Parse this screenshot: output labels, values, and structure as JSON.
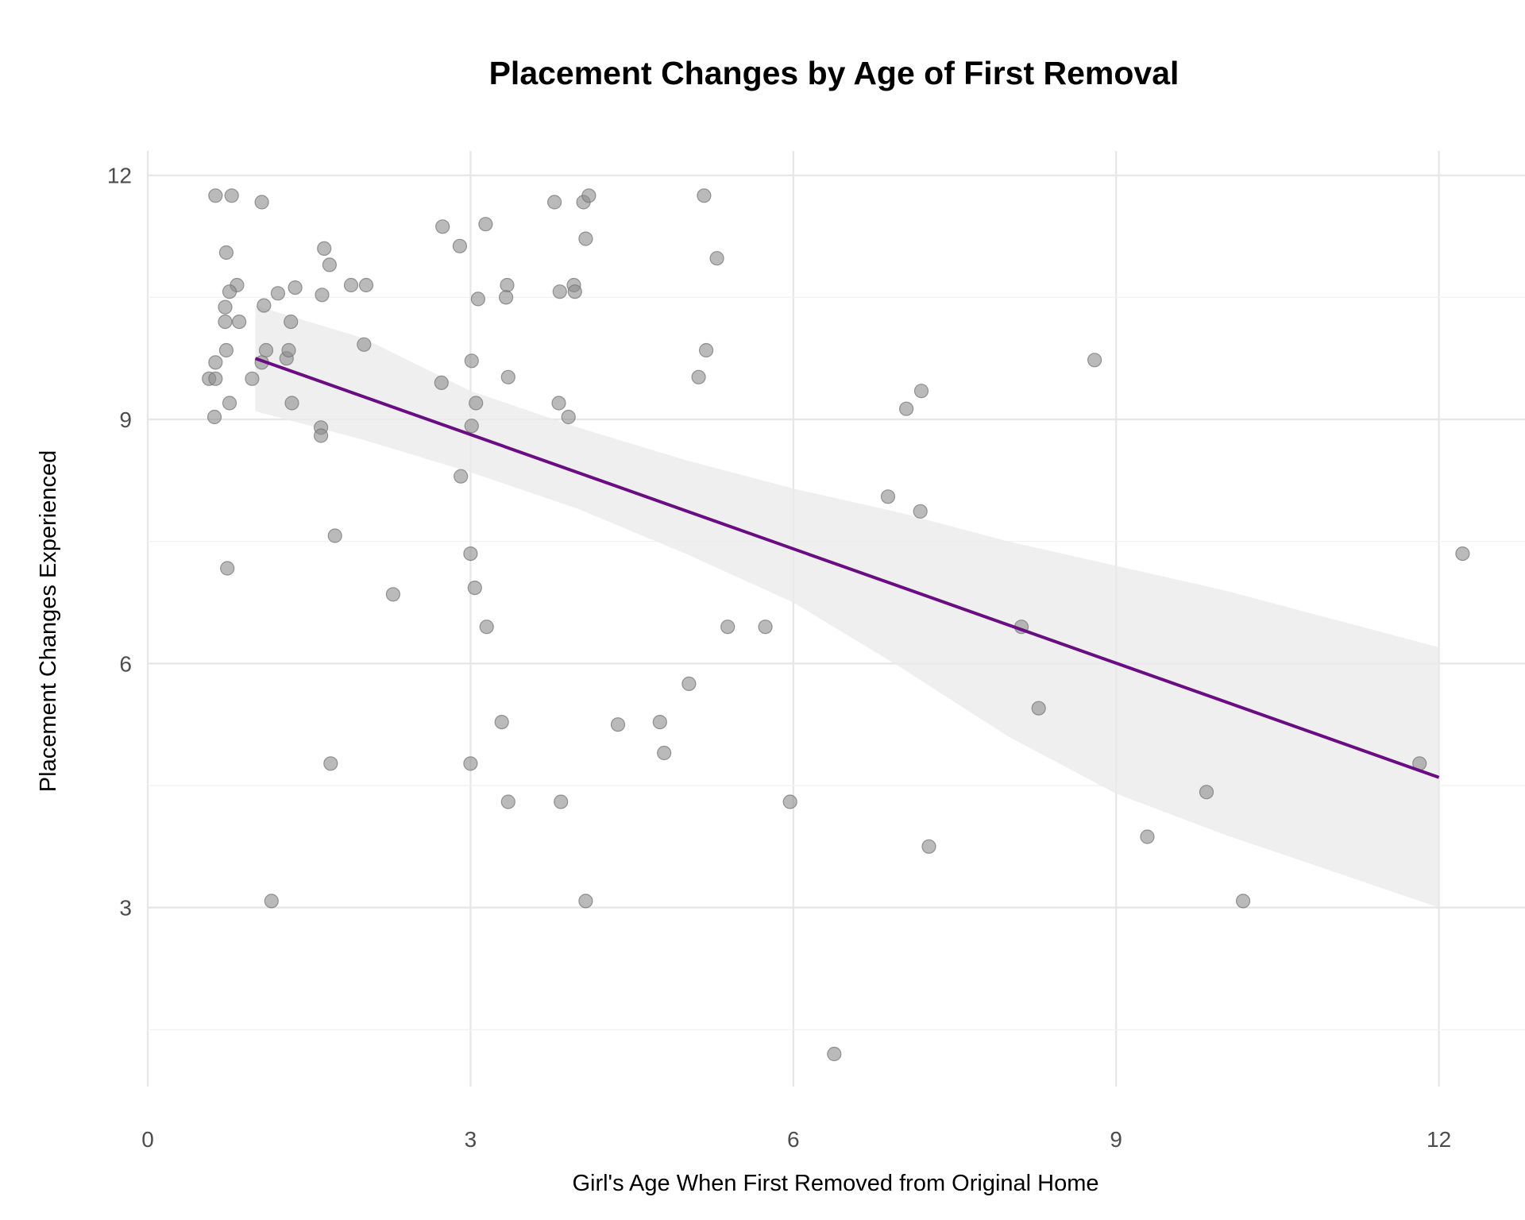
{
  "chart_data": {
    "type": "scatter",
    "title": "Placement Changes by Age of First Removal",
    "xlabel": "Girl's Age When First Removed from Original Home",
    "ylabel": "Placement Changes Experienced",
    "xlim": [
      0,
      12.8
    ],
    "ylim": [
      0.8,
      12.3
    ],
    "x_ticks": [
      0,
      3,
      6,
      9,
      12
    ],
    "y_ticks": [
      3,
      6,
      9,
      12
    ],
    "x_tick_labels": [
      "0",
      "3",
      "6",
      "9",
      "12"
    ],
    "y_tick_labels": [
      "3",
      "6",
      "9",
      "12"
    ],
    "grid": true,
    "legend": "none",
    "colors": {
      "line": "#6a0d83",
      "points": "#8c8c8c",
      "band": "#ebebeb"
    },
    "points": [
      {
        "x": 0.63,
        "y": 11.75
      },
      {
        "x": 0.78,
        "y": 11.75
      },
      {
        "x": 1.06,
        "y": 11.67
      },
      {
        "x": 0.73,
        "y": 11.05
      },
      {
        "x": 0.83,
        "y": 10.65
      },
      {
        "x": 0.76,
        "y": 10.57
      },
      {
        "x": 0.72,
        "y": 10.38
      },
      {
        "x": 0.72,
        "y": 10.2
      },
      {
        "x": 0.85,
        "y": 10.2
      },
      {
        "x": 0.73,
        "y": 9.85
      },
      {
        "x": 0.63,
        "y": 9.7
      },
      {
        "x": 0.57,
        "y": 9.5
      },
      {
        "x": 0.63,
        "y": 9.5
      },
      {
        "x": 0.76,
        "y": 9.2
      },
      {
        "x": 0.62,
        "y": 9.03
      },
      {
        "x": 0.97,
        "y": 9.5
      },
      {
        "x": 1.06,
        "y": 9.7
      },
      {
        "x": 1.08,
        "y": 10.4
      },
      {
        "x": 1.1,
        "y": 9.85
      },
      {
        "x": 1.21,
        "y": 10.55
      },
      {
        "x": 1.29,
        "y": 9.75
      },
      {
        "x": 1.31,
        "y": 9.85
      },
      {
        "x": 1.33,
        "y": 10.2
      },
      {
        "x": 1.34,
        "y": 9.2
      },
      {
        "x": 1.37,
        "y": 10.62
      },
      {
        "x": 0.74,
        "y": 7.17
      },
      {
        "x": 1.15,
        "y": 3.08
      },
      {
        "x": 1.64,
        "y": 11.1
      },
      {
        "x": 1.69,
        "y": 10.9
      },
      {
        "x": 1.62,
        "y": 10.53
      },
      {
        "x": 1.61,
        "y": 8.9
      },
      {
        "x": 1.61,
        "y": 8.8
      },
      {
        "x": 1.74,
        "y": 7.57
      },
      {
        "x": 1.7,
        "y": 4.77
      },
      {
        "x": 1.89,
        "y": 10.65
      },
      {
        "x": 2.03,
        "y": 10.65
      },
      {
        "x": 2.01,
        "y": 9.92
      },
      {
        "x": 2.28,
        "y": 6.85
      },
      {
        "x": 2.74,
        "y": 11.37
      },
      {
        "x": 2.9,
        "y": 11.13
      },
      {
        "x": 2.73,
        "y": 9.45
      },
      {
        "x": 2.91,
        "y": 8.3
      },
      {
        "x": 3.14,
        "y": 11.4
      },
      {
        "x": 3.07,
        "y": 10.48
      },
      {
        "x": 3.34,
        "y": 10.65
      },
      {
        "x": 3.33,
        "y": 10.5
      },
      {
        "x": 3.01,
        "y": 9.72
      },
      {
        "x": 3.35,
        "y": 9.52
      },
      {
        "x": 3.05,
        "y": 9.2
      },
      {
        "x": 3.01,
        "y": 8.92
      },
      {
        "x": 3.0,
        "y": 7.35
      },
      {
        "x": 3.04,
        "y": 6.93
      },
      {
        "x": 3.15,
        "y": 6.45
      },
      {
        "x": 3.29,
        "y": 5.28
      },
      {
        "x": 3.0,
        "y": 4.77
      },
      {
        "x": 3.35,
        "y": 4.3
      },
      {
        "x": 3.78,
        "y": 11.67
      },
      {
        "x": 4.05,
        "y": 11.67
      },
      {
        "x": 4.1,
        "y": 11.75
      },
      {
        "x": 4.07,
        "y": 11.22
      },
      {
        "x": 3.96,
        "y": 10.65
      },
      {
        "x": 3.83,
        "y": 10.57
      },
      {
        "x": 3.97,
        "y": 10.57
      },
      {
        "x": 3.82,
        "y": 9.2
      },
      {
        "x": 3.91,
        "y": 9.03
      },
      {
        "x": 3.84,
        "y": 4.3
      },
      {
        "x": 4.07,
        "y": 3.08
      },
      {
        "x": 4.37,
        "y": 5.25
      },
      {
        "x": 4.76,
        "y": 5.28
      },
      {
        "x": 4.8,
        "y": 4.9
      },
      {
        "x": 5.03,
        "y": 5.75
      },
      {
        "x": 5.17,
        "y": 11.75
      },
      {
        "x": 5.29,
        "y": 10.98
      },
      {
        "x": 5.19,
        "y": 9.85
      },
      {
        "x": 5.12,
        "y": 9.52
      },
      {
        "x": 5.39,
        "y": 6.45
      },
      {
        "x": 5.74,
        "y": 6.45
      },
      {
        "x": 5.97,
        "y": 4.3
      },
      {
        "x": 6.38,
        "y": 1.2
      },
      {
        "x": 6.88,
        "y": 8.05
      },
      {
        "x": 7.05,
        "y": 9.13
      },
      {
        "x": 7.19,
        "y": 9.35
      },
      {
        "x": 7.18,
        "y": 7.87
      },
      {
        "x": 7.26,
        "y": 3.75
      },
      {
        "x": 8.12,
        "y": 6.45
      },
      {
        "x": 8.28,
        "y": 5.45
      },
      {
        "x": 8.8,
        "y": 9.73
      },
      {
        "x": 9.29,
        "y": 3.87
      },
      {
        "x": 9.84,
        "y": 4.42
      },
      {
        "x": 10.18,
        "y": 3.08
      },
      {
        "x": 11.82,
        "y": 4.77
      },
      {
        "x": 12.22,
        "y": 7.35
      }
    ],
    "fit_line": {
      "x": [
        1.0,
        12.0
      ],
      "y": [
        9.75,
        4.6
      ]
    },
    "confidence_band": {
      "x": [
        1.0,
        2.0,
        3.0,
        4.0,
        5.0,
        6.0,
        7.0,
        8.0,
        9.0,
        10.0,
        11.0,
        12.0
      ],
      "upper": [
        10.4,
        10.0,
        9.35,
        8.9,
        8.5,
        8.15,
        7.85,
        7.5,
        7.2,
        6.9,
        6.55,
        6.2
      ],
      "lower": [
        9.1,
        8.75,
        8.35,
        7.9,
        7.35,
        6.75,
        5.95,
        5.1,
        4.4,
        3.9,
        3.45,
        3.0
      ]
    }
  }
}
